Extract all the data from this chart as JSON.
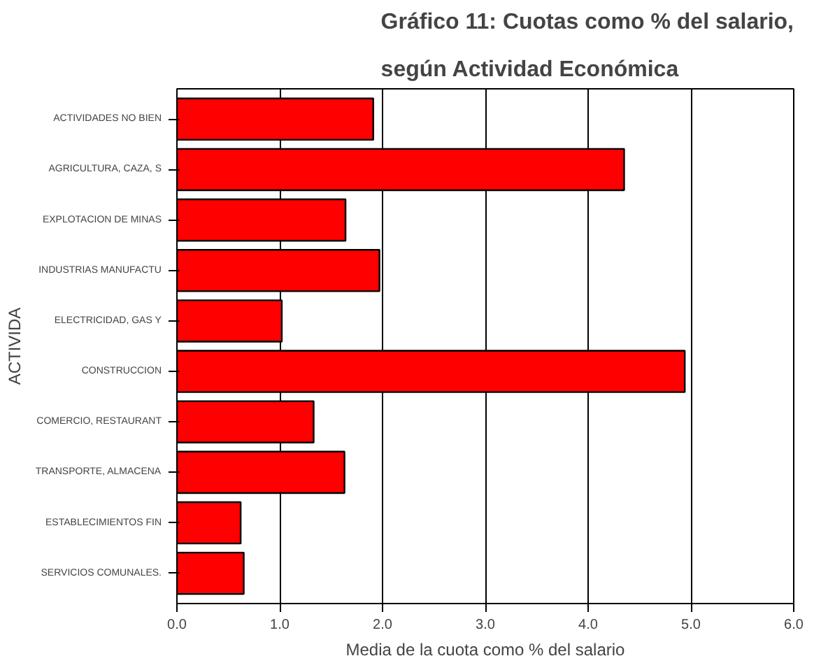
{
  "chart_data": {
    "type": "bar",
    "orientation": "horizontal",
    "title": "Gráfico 11: Cuotas como % del salario,\n\nsegún Actividad Económica",
    "xlabel": "Media de la cuota como % del salario",
    "ylabel": "ACTIVIDA",
    "categories": [
      "ACTIVIDADES NO BIEN",
      "AGRICULTURA, CAZA, S",
      "EXPLOTACION DE MINAS",
      "INDUSTRIAS MANUFACTU",
      "ELECTRICIDAD, GAS Y",
      "CONSTRUCCION",
      "COMERCIO, RESTAURANT",
      "TRANSPORTE, ALMACENA",
      "ESTABLECIMIENTOS FIN",
      "SERVICIOS COMUNALES."
    ],
    "values": [
      1.91,
      4.35,
      1.64,
      1.97,
      1.02,
      4.94,
      1.33,
      1.63,
      0.62,
      0.65
    ],
    "color": "#ff0000",
    "xlim": [
      0,
      6
    ],
    "xticks": [
      {
        "value": 0,
        "label": "0.0"
      },
      {
        "value": 1,
        "label": "1.0"
      },
      {
        "value": 2,
        "label": "2.0"
      },
      {
        "value": 3,
        "label": "3.0"
      },
      {
        "value": 4,
        "label": "4.0"
      },
      {
        "value": 5,
        "label": "5.0"
      },
      {
        "value": 6,
        "label": "6.0"
      }
    ],
    "grid": "x"
  }
}
